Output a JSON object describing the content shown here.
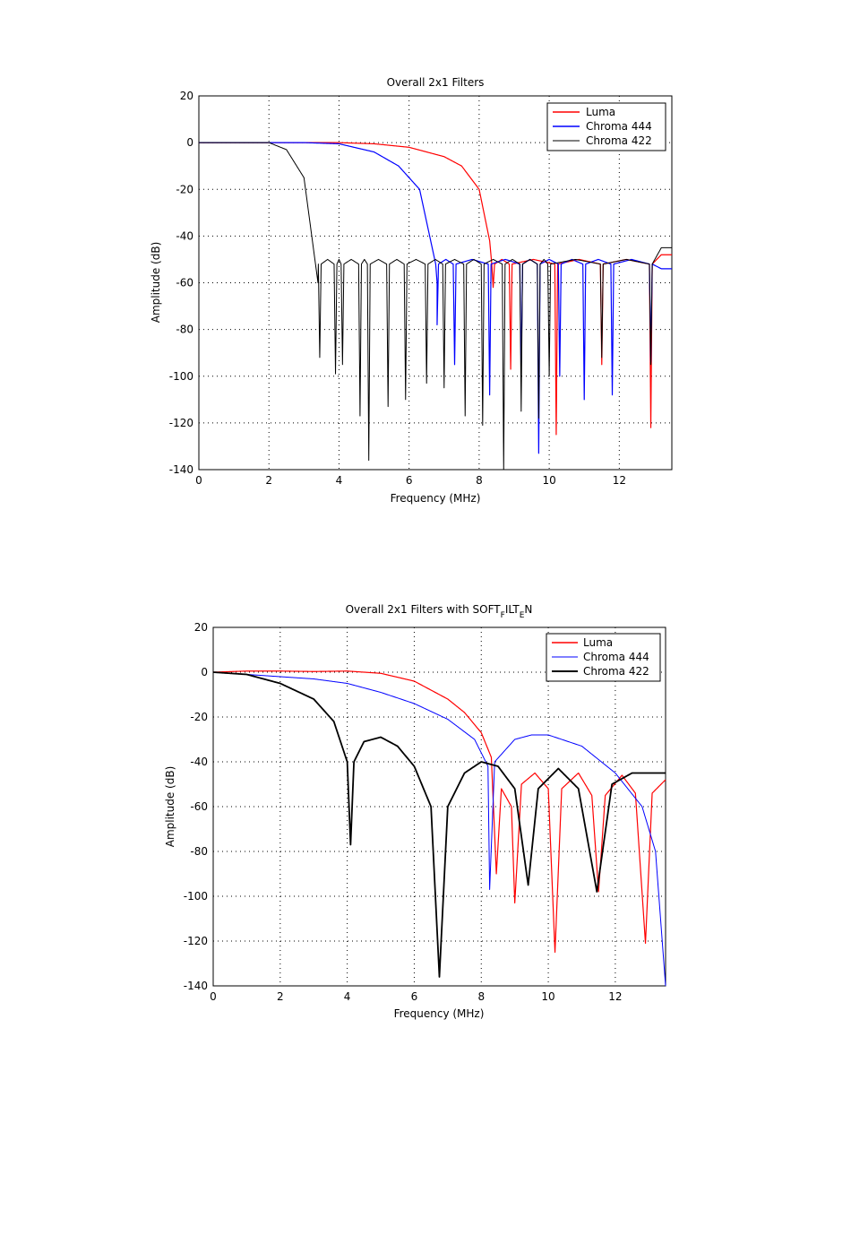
{
  "chart_data": [
    {
      "type": "line",
      "title": "Overall 2x1 Filters",
      "xlabel": "Frequency (MHz)",
      "ylabel": "Amplitude (dB)",
      "xlim": [
        0,
        13.5
      ],
      "ylim": [
        -140,
        20
      ],
      "xticks": [
        0,
        2,
        4,
        6,
        8,
        10,
        12
      ],
      "yticks": [
        20,
        0,
        -20,
        -40,
        -60,
        -80,
        -100,
        -120,
        -140
      ],
      "grid": true,
      "legend_position": "top-right",
      "series": [
        {
          "name": "Luma",
          "color": "#ff0000",
          "kind": "lowpass",
          "cutoff": 8.3,
          "passband": [
            [
              0,
              0
            ],
            [
              4,
              0
            ],
            [
              5,
              -0.5
            ],
            [
              6,
              -2
            ],
            [
              7,
              -6
            ],
            [
              7.5,
              -10
            ],
            [
              8,
              -20
            ],
            [
              8.3,
              -42
            ]
          ],
          "dips": [
            [
              8.4,
              -62
            ],
            [
              8.9,
              -97
            ],
            [
              10.2,
              -125
            ],
            [
              11.5,
              -95
            ],
            [
              12.9,
              -122
            ]
          ],
          "tail_end": -48
        },
        {
          "name": "Chroma 444",
          "color": "#0000ff",
          "kind": "lowpass",
          "cutoff": 6.8,
          "passband": [
            [
              0,
              0
            ],
            [
              3,
              0
            ],
            [
              4,
              -0.5
            ],
            [
              5,
              -4
            ],
            [
              5.7,
              -10
            ],
            [
              6.3,
              -20
            ],
            [
              6.8,
              -60
            ]
          ],
          "dips": [
            [
              6.8,
              -78
            ],
            [
              7.3,
              -95
            ],
            [
              8.3,
              -108
            ],
            [
              9.2,
              -98
            ],
            [
              9.7,
              -133
            ],
            [
              10.3,
              -100
            ],
            [
              11.0,
              -110
            ],
            [
              11.8,
              -108
            ],
            [
              12.9,
              -94
            ]
          ],
          "tail_end": -54
        },
        {
          "name": "Chroma 422",
          "color": "#000000",
          "kind": "lowpass",
          "cutoff": 3.4,
          "passband": [
            [
              0,
              0
            ],
            [
              2,
              0
            ],
            [
              2.5,
              -3
            ],
            [
              3.0,
              -15
            ],
            [
              3.4,
              -60
            ]
          ],
          "dips": [
            [
              3.45,
              -92
            ],
            [
              3.9,
              -99
            ],
            [
              4.1,
              -95
            ],
            [
              4.6,
              -117
            ],
            [
              4.85,
              -136
            ],
            [
              5.4,
              -113
            ],
            [
              5.9,
              -110
            ],
            [
              6.5,
              -103
            ],
            [
              7.0,
              -105
            ],
            [
              7.6,
              -117
            ],
            [
              8.1,
              -121
            ],
            [
              8.7,
              -140
            ],
            [
              9.2,
              -115
            ],
            [
              9.7,
              -118
            ],
            [
              10.0,
              -100
            ],
            [
              11.5,
              -92
            ],
            [
              12.9,
              -95
            ]
          ],
          "tail_end": -45
        }
      ]
    },
    {
      "type": "line",
      "title": "Overall 2x1 Filters with SOFT",
      "title_sub1": "F",
      "title_mid": "ILT",
      "title_sub2": "E",
      "title_end": "N",
      "xlabel": "Frequency (MHz)",
      "ylabel": "Amplitude (dB)",
      "xlim": [
        0,
        13.5
      ],
      "ylim": [
        -140,
        20
      ],
      "xticks": [
        0,
        2,
        4,
        6,
        8,
        10,
        12
      ],
      "yticks": [
        20,
        0,
        -20,
        -40,
        -60,
        -80,
        -100,
        -120,
        -140
      ],
      "grid": true,
      "legend_position": "top-right",
      "series": [
        {
          "name": "Luma",
          "color": "#ff0000",
          "curve": [
            [
              0,
              0
            ],
            [
              1,
              0.5
            ],
            [
              2,
              0.5
            ],
            [
              3,
              0.3
            ],
            [
              4,
              0.5
            ],
            [
              5,
              -0.5
            ],
            [
              6,
              -4
            ],
            [
              7,
              -12
            ],
            [
              7.5,
              -18
            ],
            [
              8.0,
              -27
            ],
            [
              8.3,
              -38
            ],
            [
              8.45,
              -90
            ],
            [
              8.6,
              -52
            ],
            [
              8.9,
              -60
            ],
            [
              9.0,
              -103
            ],
            [
              9.2,
              -50
            ],
            [
              9.6,
              -45
            ],
            [
              10.0,
              -52
            ],
            [
              10.2,
              -125
            ],
            [
              10.4,
              -52
            ],
            [
              10.9,
              -45
            ],
            [
              11.3,
              -55
            ],
            [
              11.5,
              -98
            ],
            [
              11.7,
              -55
            ],
            [
              12.2,
              -46
            ],
            [
              12.6,
              -54
            ],
            [
              12.9,
              -121
            ],
            [
              13.1,
              -54
            ],
            [
              13.5,
              -48
            ]
          ]
        },
        {
          "name": "Chroma 444",
          "color": "#0000ff",
          "curve": [
            [
              0,
              0
            ],
            [
              1,
              -1
            ],
            [
              2,
              -2
            ],
            [
              3,
              -3
            ],
            [
              4,
              -5
            ],
            [
              5,
              -9
            ],
            [
              6,
              -14
            ],
            [
              7,
              -21
            ],
            [
              7.8,
              -30
            ],
            [
              8.2,
              -42
            ],
            [
              8.25,
              -97
            ],
            [
              8.4,
              -40
            ],
            [
              9.0,
              -30
            ],
            [
              9.5,
              -28
            ],
            [
              10.0,
              -28
            ],
            [
              11.0,
              -33
            ],
            [
              12.0,
              -45
            ],
            [
              12.8,
              -60
            ],
            [
              13.2,
              -80
            ],
            [
              13.5,
              -140
            ]
          ]
        },
        {
          "name": "Chroma 422",
          "color": "#000000",
          "curve": [
            [
              0,
              0
            ],
            [
              1,
              -1
            ],
            [
              2,
              -5
            ],
            [
              3,
              -12
            ],
            [
              3.6,
              -22
            ],
            [
              4.0,
              -40
            ],
            [
              4.1,
              -77
            ],
            [
              4.2,
              -40
            ],
            [
              4.5,
              -31
            ],
            [
              5,
              -29
            ],
            [
              5.5,
              -33
            ],
            [
              6.0,
              -42
            ],
            [
              6.5,
              -60
            ],
            [
              6.75,
              -136
            ],
            [
              7.0,
              -60
            ],
            [
              7.5,
              -45
            ],
            [
              8.0,
              -40
            ],
            [
              8.5,
              -42
            ],
            [
              9.0,
              -52
            ],
            [
              9.4,
              -95
            ],
            [
              9.7,
              -52
            ],
            [
              10.3,
              -43
            ],
            [
              10.9,
              -52
            ],
            [
              11.45,
              -98
            ],
            [
              11.9,
              -50
            ],
            [
              12.5,
              -45
            ],
            [
              13.0,
              -45
            ],
            [
              13.5,
              -45
            ]
          ]
        }
      ]
    }
  ]
}
